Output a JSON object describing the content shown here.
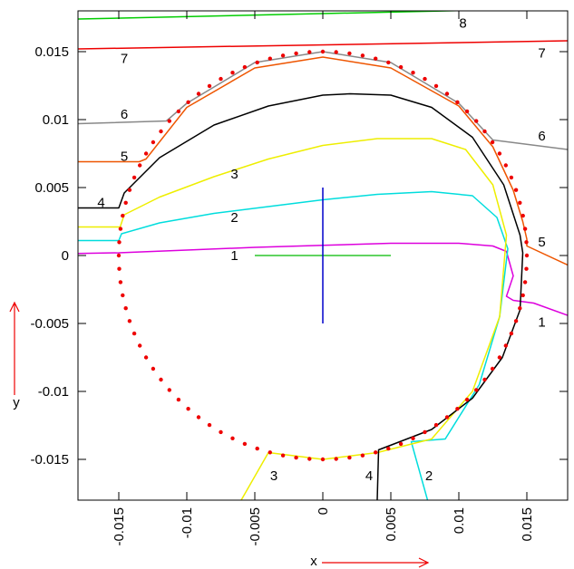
{
  "chart_data": {
    "type": "line",
    "title": "",
    "xlabel": "x",
    "ylabel": "y",
    "xlim": [
      -0.018,
      0.018
    ],
    "ylim": [
      -0.018,
      0.018
    ],
    "grid": false,
    "x_ticks": [
      {
        "value": -0.015,
        "label": "-0.015"
      },
      {
        "value": -0.01,
        "label": "-0.01"
      },
      {
        "value": -0.005,
        "label": "-0.005"
      },
      {
        "value": 0,
        "label": "0"
      },
      {
        "value": 0.005,
        "label": "0.005"
      },
      {
        "value": 0.01,
        "label": "0.01"
      },
      {
        "value": 0.015,
        "label": "0.015"
      }
    ],
    "y_ticks": [
      {
        "value": 0.015,
        "label": "0.015"
      },
      {
        "value": 0.01,
        "label": "0.01"
      },
      {
        "value": 0.005,
        "label": "0.005"
      },
      {
        "value": 0,
        "label": "0"
      },
      {
        "value": -0.005,
        "label": "-0.005"
      },
      {
        "value": -0.01,
        "label": "-0.01"
      },
      {
        "value": -0.015,
        "label": "-0.015"
      }
    ],
    "reference_circle": {
      "center": [
        0,
        0
      ],
      "radius": 0.015,
      "color": "#ee0000"
    },
    "series": [
      {
        "color": "#dd00dd",
        "x": [
          -0.018,
          -0.015,
          -0.01,
          -0.005,
          0,
          0.005,
          0.01,
          0.0125,
          0.0135,
          0.014,
          0.0135,
          0.014,
          0.0155,
          0.018
        ],
        "y": [
          0.00015,
          0.0002,
          0.0004,
          0.0006,
          0.00075,
          0.0009,
          0.0009,
          0.0007,
          0.0003,
          -0.0015,
          -0.003,
          -0.0033,
          -0.0035,
          -0.0044
        ]
      },
      {
        "color": "#00dddd",
        "x": [
          -0.018,
          -0.015,
          -0.0148,
          -0.012,
          -0.008,
          -0.004,
          0,
          0.004,
          0.008,
          0.011,
          0.0128,
          0.0136,
          0.013,
          0.0115,
          0.009,
          0.0065,
          0.0077
        ],
        "y": [
          0.0011,
          0.0011,
          0.0016,
          0.0024,
          0.0031,
          0.0036,
          0.0041,
          0.0045,
          0.0047,
          0.0044,
          0.0028,
          0.0005,
          -0.0045,
          -0.0095,
          -0.0135,
          -0.0137,
          -0.018
        ]
      },
      {
        "color": "#eeee00",
        "x": [
          -0.018,
          -0.0149,
          -0.0146,
          -0.012,
          -0.008,
          -0.004,
          0,
          0.004,
          0.008,
          0.0105,
          0.0125,
          0.0135,
          0.013,
          0.011,
          0.008,
          0.004,
          0,
          -0.004,
          -0.006
        ],
        "y": [
          0.0021,
          0.0021,
          0.003,
          0.0043,
          0.0058,
          0.0071,
          0.0081,
          0.0086,
          0.0086,
          0.0078,
          0.0052,
          0.0015,
          -0.0045,
          -0.01,
          -0.0135,
          -0.0145,
          -0.015,
          -0.0145,
          -0.018
        ]
      },
      {
        "color": "#000000",
        "x": [
          -0.018,
          -0.015,
          -0.0146,
          -0.012,
          -0.008,
          -0.004,
          0,
          0.002,
          0.005,
          0.008,
          0.011,
          0.0133,
          0.0145,
          0.0147,
          0.0145,
          0.0132,
          0.011,
          0.008,
          0.0041,
          0.004
        ],
        "y": [
          0.0035,
          0.0035,
          0.0046,
          0.0072,
          0.0096,
          0.011,
          0.0118,
          0.0119,
          0.0118,
          0.0109,
          0.0087,
          0.0052,
          0.0015,
          0.0002,
          -0.004,
          -0.0075,
          -0.0105,
          -0.0128,
          -0.0143,
          -0.018
        ]
      },
      {
        "color": "#ee5500",
        "x": [
          -0.018,
          -0.0135,
          -0.013,
          -0.01,
          -0.005,
          0,
          0.005,
          0.01,
          0.0125,
          0.014,
          0.0147,
          0.015,
          0.015,
          0.018
        ],
        "y": [
          0.0069,
          0.0069,
          0.0071,
          0.0109,
          0.0138,
          0.0146,
          0.0138,
          0.011,
          0.008,
          0.0048,
          0.0025,
          0.0012,
          0.0007,
          -0.0007
        ]
      },
      {
        "color": "#888888",
        "x": [
          -0.018,
          -0.0115,
          -0.01,
          -0.005,
          0,
          0.005,
          0.01,
          0.0125,
          0.018
        ],
        "y": [
          0.0097,
          0.0099,
          0.0112,
          0.0142,
          0.015,
          0.0142,
          0.0112,
          0.0085,
          0.0078
        ]
      },
      {
        "color": "#ee0000",
        "x": [
          -0.018,
          0.018
        ],
        "y": [
          0.0152,
          0.0158
        ]
      },
      {
        "color": "#00cc00",
        "x": [
          -0.018,
          0.018
        ],
        "y": [
          0.0174,
          0.0182
        ]
      }
    ],
    "crosshair": {
      "horizontal": {
        "x": [
          -0.005,
          0.005
        ],
        "y": 0,
        "color": "#00bb00"
      },
      "vertical": {
        "x": 0,
        "y": [
          -0.005,
          0.005
        ],
        "color": "#0000cc"
      }
    },
    "annotations": [
      {
        "text": "1",
        "x": -0.0065,
        "y": 0.0
      },
      {
        "text": "2",
        "x": -0.0065,
        "y": 0.0028
      },
      {
        "text": "3",
        "x": -0.0065,
        "y": 0.006
      },
      {
        "text": "4",
        "x": -0.0163,
        "y": 0.0039
      },
      {
        "text": "5",
        "x": -0.0146,
        "y": 0.0073
      },
      {
        "text": "6",
        "x": -0.0146,
        "y": 0.0104
      },
      {
        "text": "7",
        "x": -0.0146,
        "y": 0.0145
      },
      {
        "text": "8",
        "x": 0.0103,
        "y": 0.0171
      },
      {
        "text": "7",
        "x": 0.0161,
        "y": 0.0149
      },
      {
        "text": "6",
        "x": 0.0161,
        "y": 0.0088
      },
      {
        "text": "5",
        "x": 0.0161,
        "y": 0.001
      },
      {
        "text": "1",
        "x": 0.0161,
        "y": -0.0049
      },
      {
        "text": "3",
        "x": -0.0036,
        "y": -0.0162
      },
      {
        "text": "4",
        "x": 0.0034,
        "y": -0.0162
      },
      {
        "text": "2",
        "x": 0.0078,
        "y": -0.0162
      }
    ],
    "arrow_color": "#ee0000"
  }
}
